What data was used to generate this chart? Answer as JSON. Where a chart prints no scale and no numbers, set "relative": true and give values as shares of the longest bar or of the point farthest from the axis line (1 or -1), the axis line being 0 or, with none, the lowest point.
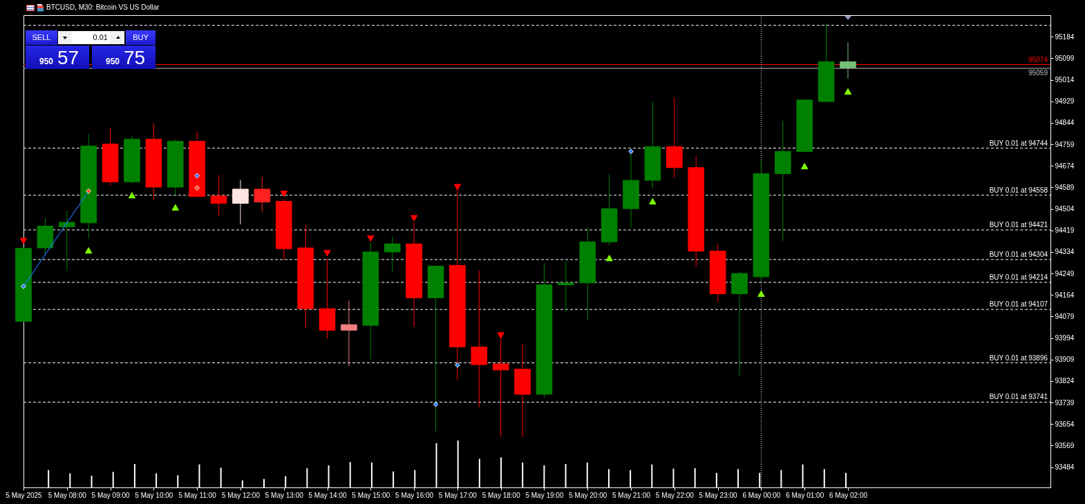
{
  "chart_data": [
    {
      "type": "candlestick",
      "title": "BTCUSD, M30: Bitcoin VS US Dollar",
      "x": [
        "2025-05-05T07:00",
        "2025-05-05T07:30",
        "2025-05-05T08:00",
        "2025-05-05T08:30",
        "2025-05-05T09:00",
        "2025-05-05T09:30",
        "2025-05-05T10:00",
        "2025-05-05T10:30",
        "2025-05-05T11:00",
        "2025-05-05T11:30",
        "2025-05-05T12:00",
        "2025-05-05T12:30",
        "2025-05-05T13:00",
        "2025-05-05T13:30",
        "2025-05-05T14:00",
        "2025-05-05T14:30",
        "2025-05-05T15:00",
        "2025-05-05T15:30",
        "2025-05-05T16:00",
        "2025-05-05T16:30",
        "2025-05-05T17:00",
        "2025-05-05T17:30",
        "2025-05-05T18:00",
        "2025-05-05T18:30",
        "2025-05-05T19:00",
        "2025-05-05T19:30",
        "2025-05-05T20:00",
        "2025-05-05T20:30",
        "2025-05-05T21:00",
        "2025-05-05T21:30",
        "2025-05-05T22:00",
        "2025-05-05T22:30",
        "2025-05-05T23:00",
        "2025-05-05T23:30",
        "2025-05-06T00:00",
        "2025-05-06T00:30",
        "2025-05-06T01:00",
        "2025-05-06T01:30",
        "2025-05-06T02:00"
      ],
      "xlim": [
        "2025-05-05T07:00",
        "2025-05-06T06:40"
      ],
      "xticks": [
        {
          "value": "2025-05-05T07:00",
          "label": "5 May 2025"
        },
        {
          "value": "2025-05-05T08:00",
          "label": "5 May 08:00"
        },
        {
          "value": "2025-05-05T09:00",
          "label": "5 May 09:00"
        },
        {
          "value": "2025-05-05T10:00",
          "label": "5 May 10:00"
        },
        {
          "value": "2025-05-05T11:00",
          "label": "5 May 11:00"
        },
        {
          "value": "2025-05-05T12:00",
          "label": "5 May 12:00"
        },
        {
          "value": "2025-05-05T13:00",
          "label": "5 May 13:00"
        },
        {
          "value": "2025-05-05T14:00",
          "label": "5 May 14:00"
        },
        {
          "value": "2025-05-05T15:00",
          "label": "5 May 15:00"
        },
        {
          "value": "2025-05-05T16:00",
          "label": "5 May 16:00"
        },
        {
          "value": "2025-05-05T17:00",
          "label": "5 May 17:00"
        },
        {
          "value": "2025-05-05T18:00",
          "label": "5 May 18:00"
        },
        {
          "value": "2025-05-05T19:00",
          "label": "5 May 19:00"
        },
        {
          "value": "2025-05-05T20:00",
          "label": "5 May 20:00"
        },
        {
          "value": "2025-05-05T21:00",
          "label": "5 May 21:00"
        },
        {
          "value": "2025-05-05T22:00",
          "label": "5 May 22:00"
        },
        {
          "value": "2025-05-05T23:00",
          "label": "5 May 23:00"
        },
        {
          "value": "2025-05-06T00:00",
          "label": "6 May 00:00"
        },
        {
          "value": "2025-05-06T01:00",
          "label": "6 May 01:00"
        },
        {
          "value": "2025-05-06T02:00",
          "label": "6 May 02:00"
        }
      ],
      "ylim": [
        93404,
        95269
      ],
      "yticks": [
        93484,
        93569,
        93654,
        93739,
        93824,
        93909,
        93994,
        94079,
        94164,
        94249,
        94334,
        94419,
        94504,
        94589,
        94674,
        94759,
        94844,
        94929,
        95014,
        95099,
        95184
      ],
      "ohlc": [
        [
          94060,
          94356,
          94055,
          94348
        ],
        [
          94350,
          94467,
          94324,
          94436
        ],
        [
          94433,
          94497,
          94260,
          94451
        ],
        [
          94449,
          94800,
          94387,
          94752
        ],
        [
          94760,
          94822,
          94598,
          94611
        ],
        [
          94611,
          94792,
          94606,
          94779
        ],
        [
          94779,
          94843,
          94539,
          94590
        ],
        [
          94590,
          94779,
          94561,
          94771
        ],
        [
          94771,
          94811,
          94550,
          94553
        ],
        [
          94555,
          94638,
          94475,
          94526
        ],
        [
          94582,
          94619,
          94443,
          94526
        ],
        [
          94582,
          94630,
          94494,
          94531
        ],
        [
          94534,
          94542,
          94300,
          94347
        ],
        [
          94350,
          94441,
          94031,
          94110
        ],
        [
          94110,
          94310,
          93990,
          94025
        ],
        [
          94047,
          94142,
          93884,
          94025
        ],
        [
          94044,
          94371,
          93911,
          94334
        ],
        [
          94334,
          94393,
          94254,
          94366
        ],
        [
          94366,
          94451,
          94039,
          94153
        ],
        [
          94153,
          94281,
          93626,
          94278
        ],
        [
          94281,
          94585,
          93828,
          93959
        ],
        [
          93959,
          94260,
          93721,
          93889
        ],
        [
          93892,
          93999,
          93604,
          93868
        ],
        [
          93871,
          93969,
          93602,
          93772
        ],
        [
          93772,
          94289,
          93759,
          94204
        ],
        [
          94204,
          94297,
          94097,
          94212
        ],
        [
          94212,
          94430,
          94065,
          94374
        ],
        [
          94374,
          94641,
          94361,
          94505
        ],
        [
          94505,
          94731,
          94430,
          94617
        ],
        [
          94617,
          94928,
          94585,
          94750
        ],
        [
          94750,
          94944,
          94627,
          94667
        ],
        [
          94667,
          94712,
          94276,
          94337
        ],
        [
          94337,
          94366,
          94137,
          94169
        ],
        [
          94169,
          94257,
          93844,
          94249
        ],
        [
          94236,
          94697,
          94217,
          94643
        ],
        [
          94643,
          94851,
          94377,
          94731
        ],
        [
          94731,
          94936,
          94728,
          94934
        ],
        [
          94928,
          95237,
          94928,
          95085
        ],
        [
          95085,
          95163,
          95019,
          95061
        ]
      ],
      "colors": [
        "#008000",
        "#008000",
        "#008000",
        "#008000",
        "#ff0000",
        "#008000",
        "#ff0000",
        "#008000",
        "#ff0000",
        "#ff0000",
        "#ffe4e1",
        "#ff2020",
        "#ff0000",
        "#ff0000",
        "#ff0000",
        "#f08080",
        "#008000",
        "#008000",
        "#ff0000",
        "#008000",
        "#ff0000",
        "#ff0000",
        "#ff0000",
        "#ff0000",
        "#008000",
        "#008000",
        "#008000",
        "#008000",
        "#008000",
        "#008000",
        "#ff0000",
        "#ff0000",
        "#ff0000",
        "#008000",
        "#008000",
        "#008000",
        "#008000",
        "#008000",
        "#77c077"
      ],
      "series": [
        {
          "type": "scatter",
          "color": "#7fff00",
          "marker": "triangle",
          "x": [
            "2025-05-05T08:30",
            "2025-05-05T09:30",
            "2025-05-05T10:30",
            "2025-05-05T20:30",
            "2025-05-05T21:30",
            "2025-05-06T00:00",
            "2025-05-06T01:00",
            "2025-05-06T02:00"
          ],
          "values": [
            94340,
            94558,
            94510,
            94310,
            94534,
            94169,
            94673,
            94968
          ]
        },
        {
          "type": "scatter",
          "color": "#ff0000",
          "marker": "triangle",
          "x": [
            "2025-05-05T07:00",
            "2025-05-05T13:00",
            "2025-05-05T14:00",
            "2025-05-05T15:00",
            "2025-05-05T16:00",
            "2025-05-05T17:00",
            "2025-05-05T18:00"
          ],
          "values": [
            94377,
            94563,
            94329,
            94387,
            94467,
            94590,
            94004
          ]
        },
        {
          "type": "line",
          "color": "#1e78ff",
          "line_style": "dotted",
          "marker": "none",
          "x": [
            "2025-05-05T07:00",
            "2025-05-05T08:30"
          ],
          "values": [
            94198,
            94574
          ]
        },
        {
          "type": "scatter",
          "color": "#1e78ff",
          "marker": "diamond",
          "x": [
            "2025-05-05T07:00",
            "2025-05-05T11:00",
            "2025-05-05T16:30",
            "2025-05-05T17:00",
            "2025-05-05T21:00"
          ],
          "values": [
            94198,
            94635,
            93732,
            93887,
            94731
          ]
        },
        {
          "type": "scatter",
          "color": "#ff4020",
          "marker": "diamond",
          "x": [
            "2025-05-05T08:30",
            "2025-05-05T11:00"
          ],
          "values": [
            94574,
            94587
          ]
        }
      ],
      "ref_lines": [
        {
          "axis": "y",
          "value": 95229,
          "color": "#ffffff",
          "line_style": "dashed"
        },
        {
          "axis": "y",
          "value": 95074,
          "label": "95074",
          "color": "#ff0000"
        },
        {
          "axis": "y",
          "value": 95059,
          "label": "95059",
          "color": "#c0c0c0"
        },
        {
          "axis": "y",
          "value": 94744,
          "label": "BUY 0.01 at 94744",
          "color": "#ffffff",
          "line_style": "dashed"
        },
        {
          "axis": "y",
          "value": 94558,
          "label": "BUY 0.01 at 94558",
          "color": "#ffffff",
          "line_style": "dashed"
        },
        {
          "axis": "y",
          "value": 94421,
          "label": "BUY 0.01 at 94421",
          "color": "#ffffff",
          "line_style": "dashed"
        },
        {
          "axis": "y",
          "value": 94304,
          "label": "BUY 0.01 at 94304",
          "color": "#ffffff",
          "line_style": "dashed"
        },
        {
          "axis": "y",
          "value": 94214,
          "label": "BUY 0.01 at 94214",
          "color": "#ffffff",
          "line_style": "dashed"
        },
        {
          "axis": "y",
          "value": 94107,
          "label": "BUY 0.01 at 94107",
          "color": "#ffffff",
          "line_style": "dashed"
        },
        {
          "axis": "y",
          "value": 93896,
          "label": "BUY 0.01 at 93896",
          "color": "#ffffff",
          "line_style": "dashed"
        },
        {
          "axis": "y",
          "value": 93741,
          "label": "BUY 0.01 at 93741",
          "color": "#ffffff",
          "line_style": "dashed"
        },
        {
          "axis": "x",
          "value": "2025-05-06T00:00",
          "color": "#ffffff",
          "line_style": "dotted"
        }
      ],
      "annotations": [
        "SELL",
        "0.01",
        "BUY",
        "950",
        "57",
        "950",
        "75"
      ]
    },
    {
      "type": "bar",
      "relative": true,
      "tick_labels": false,
      "color": "#ffffff",
      "x": [
        "2025-05-05T07:30",
        "2025-05-05T08:00",
        "2025-05-05T08:30",
        "2025-05-05T09:00",
        "2025-05-05T09:30",
        "2025-05-05T10:00",
        "2025-05-05T10:30",
        "2025-05-05T11:00",
        "2025-05-05T11:30",
        "2025-05-05T12:00",
        "2025-05-05T12:30",
        "2025-05-05T13:00",
        "2025-05-05T13:30",
        "2025-05-05T14:00",
        "2025-05-05T14:30",
        "2025-05-05T15:00",
        "2025-05-05T15:30",
        "2025-05-05T16:00",
        "2025-05-05T16:30",
        "2025-05-05T17:00",
        "2025-05-05T17:30",
        "2025-05-05T18:00",
        "2025-05-05T18:30",
        "2025-05-05T19:00",
        "2025-05-05T19:30",
        "2025-05-05T20:00",
        "2025-05-05T20:30",
        "2025-05-05T21:00",
        "2025-05-05T21:30",
        "2025-05-05T22:00",
        "2025-05-05T22:30",
        "2025-05-05T23:00",
        "2025-05-05T23:30",
        "2025-05-06T00:00",
        "2025-05-06T00:30",
        "2025-05-06T01:00",
        "2025-05-06T01:30",
        "2025-05-06T02:00"
      ],
      "xlim": [
        "2025-05-05T07:00",
        "2025-05-06T06:40"
      ],
      "values": [
        0.37,
        0.3,
        0.25,
        0.33,
        0.5,
        0.3,
        0.26,
        0.49,
        0.42,
        0.15,
        0.18,
        0.24,
        0.41,
        0.47,
        0.54,
        0.53,
        0.34,
        0.37,
        0.94,
        1,
        0.61,
        0.64,
        0.53,
        0.47,
        0.5,
        0.53,
        0.39,
        0.37,
        0.49,
        0.4,
        0.41,
        0.31,
        0.39,
        0.31,
        0.37,
        0.49,
        0.39,
        0.31
      ]
    }
  ]
}
